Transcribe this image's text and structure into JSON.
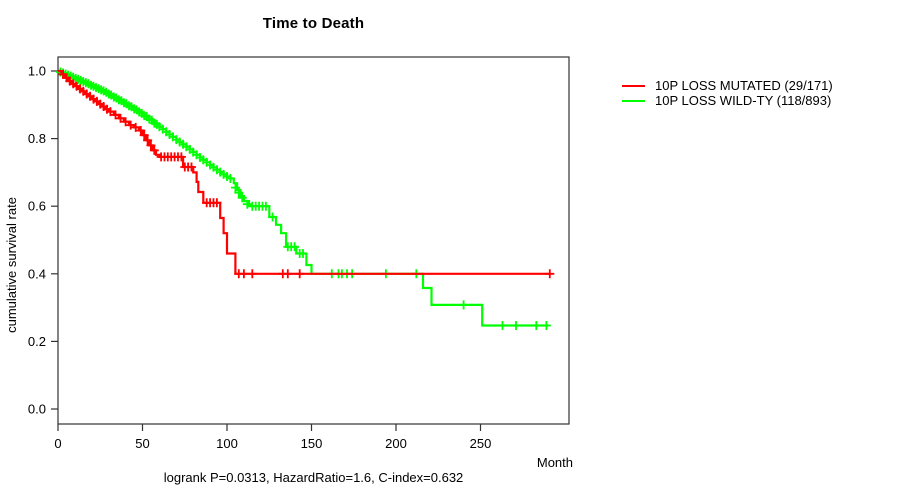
{
  "figure": {
    "title": "Time to Death",
    "x_axis_label": "Month",
    "y_axis_label": "cumulative survival rate",
    "caption": "logrank P=0.0313, HazardRatio=1.6, C-index=0.632"
  },
  "legend": {
    "items": [
      {
        "label": "10P LOSS MUTATED (29/171)",
        "color": "#ff0000"
      },
      {
        "label": "10P LOSS WILD-TY (118/893)",
        "color": "#00ff00"
      }
    ]
  },
  "colors": {
    "axis": "#333333",
    "text": "#000000",
    "background": "#ffffff",
    "mutated": "#ff0000",
    "wild_type": "#00ff00"
  },
  "chart_data": {
    "type": "line",
    "subtype": "kaplan-meier-step",
    "title": "Time to Death",
    "xlabel": "Month",
    "ylabel": "cumulative survival rate",
    "xlim": [
      0,
      300
    ],
    "ylim": [
      0.0,
      1.0
    ],
    "x_ticks": [
      0,
      50,
      100,
      150,
      200,
      250
    ],
    "y_ticks": [
      0.0,
      0.2,
      0.4,
      0.6,
      0.8,
      1.0
    ],
    "grid": false,
    "legend_position": "right-outside",
    "annotation": "logrank P=0.0313, HazardRatio=1.6, C-index=0.632",
    "series": [
      {
        "name": "10P LOSS MUTATED (29/171)",
        "color": "#ff0000",
        "steps": [
          [
            0,
            1.0
          ],
          [
            2,
            0.99
          ],
          [
            4,
            0.98
          ],
          [
            6,
            0.97
          ],
          [
            8,
            0.962
          ],
          [
            10,
            0.955
          ],
          [
            12,
            0.947
          ],
          [
            14,
            0.94
          ],
          [
            16,
            0.932
          ],
          [
            18,
            0.925
          ],
          [
            20,
            0.917
          ],
          [
            22,
            0.91
          ],
          [
            24,
            0.902
          ],
          [
            26,
            0.895
          ],
          [
            28,
            0.887
          ],
          [
            30,
            0.88
          ],
          [
            33,
            0.87
          ],
          [
            36,
            0.86
          ],
          [
            39,
            0.85
          ],
          [
            42,
            0.84
          ],
          [
            45,
            0.833
          ],
          [
            48,
            0.824
          ],
          [
            50,
            0.81
          ],
          [
            52,
            0.795
          ],
          [
            54,
            0.78
          ],
          [
            56,
            0.765
          ],
          [
            58,
            0.752
          ],
          [
            60,
            0.746
          ],
          [
            74,
            0.716
          ],
          [
            80,
            0.7
          ],
          [
            82,
            0.672
          ],
          [
            83,
            0.642
          ],
          [
            86,
            0.61
          ],
          [
            96,
            0.565
          ],
          [
            98,
            0.52
          ],
          [
            100,
            0.46
          ],
          [
            105,
            0.4
          ],
          [
            291,
            0.4
          ]
        ],
        "censors": [
          [
            3,
            0.99
          ],
          [
            5,
            0.98
          ],
          [
            7,
            0.97
          ],
          [
            9,
            0.962
          ],
          [
            11,
            0.955
          ],
          [
            13,
            0.947
          ],
          [
            15,
            0.94
          ],
          [
            17,
            0.932
          ],
          [
            19,
            0.925
          ],
          [
            21,
            0.917
          ],
          [
            23,
            0.91
          ],
          [
            25,
            0.902
          ],
          [
            27,
            0.895
          ],
          [
            29,
            0.887
          ],
          [
            31,
            0.88
          ],
          [
            34,
            0.87
          ],
          [
            37,
            0.86
          ],
          [
            40,
            0.85
          ],
          [
            43,
            0.84
          ],
          [
            46,
            0.833
          ],
          [
            49,
            0.824
          ],
          [
            51,
            0.81
          ],
          [
            53,
            0.795
          ],
          [
            55,
            0.78
          ],
          [
            57,
            0.765
          ],
          [
            61,
            0.746
          ],
          [
            63,
            0.746
          ],
          [
            65,
            0.746
          ],
          [
            67,
            0.746
          ],
          [
            69,
            0.746
          ],
          [
            71,
            0.746
          ],
          [
            73,
            0.746
          ],
          [
            75,
            0.716
          ],
          [
            77,
            0.716
          ],
          [
            79,
            0.716
          ],
          [
            88,
            0.61
          ],
          [
            90,
            0.61
          ],
          [
            92,
            0.61
          ],
          [
            94,
            0.61
          ],
          [
            107,
            0.4
          ],
          [
            110,
            0.4
          ],
          [
            115,
            0.4
          ],
          [
            133,
            0.4
          ],
          [
            136,
            0.4
          ],
          [
            143,
            0.4
          ],
          [
            291,
            0.4
          ]
        ]
      },
      {
        "name": "10P LOSS WILD-TY (118/893)",
        "color": "#00ff00",
        "steps": [
          [
            0,
            1.0
          ],
          [
            1,
            0.998
          ],
          [
            2,
            0.996
          ],
          [
            3,
            0.994
          ],
          [
            4,
            0.992
          ],
          [
            5,
            0.99
          ],
          [
            6,
            0.988
          ],
          [
            7,
            0.986
          ],
          [
            8,
            0.984
          ],
          [
            9,
            0.982
          ],
          [
            10,
            0.979
          ],
          [
            12,
            0.975
          ],
          [
            14,
            0.971
          ],
          [
            16,
            0.967
          ],
          [
            18,
            0.962
          ],
          [
            20,
            0.958
          ],
          [
            22,
            0.953
          ],
          [
            24,
            0.948
          ],
          [
            26,
            0.943
          ],
          [
            28,
            0.938
          ],
          [
            30,
            0.932
          ],
          [
            32,
            0.926
          ],
          [
            34,
            0.92
          ],
          [
            36,
            0.915
          ],
          [
            38,
            0.909
          ],
          [
            40,
            0.903
          ],
          [
            42,
            0.897
          ],
          [
            44,
            0.891
          ],
          [
            46,
            0.885
          ],
          [
            48,
            0.879
          ],
          [
            50,
            0.872
          ],
          [
            52,
            0.865
          ],
          [
            54,
            0.858
          ],
          [
            56,
            0.85
          ],
          [
            58,
            0.842
          ],
          [
            60,
            0.835
          ],
          [
            62,
            0.828
          ],
          [
            64,
            0.82
          ],
          [
            66,
            0.812
          ],
          [
            68,
            0.805
          ],
          [
            70,
            0.797
          ],
          [
            72,
            0.79
          ],
          [
            74,
            0.783
          ],
          [
            76,
            0.776
          ],
          [
            78,
            0.768
          ],
          [
            80,
            0.76
          ],
          [
            82,
            0.752
          ],
          [
            84,
            0.744
          ],
          [
            86,
            0.737
          ],
          [
            88,
            0.73
          ],
          [
            90,
            0.722
          ],
          [
            92,
            0.715
          ],
          [
            94,
            0.708
          ],
          [
            96,
            0.701
          ],
          [
            98,
            0.694
          ],
          [
            100,
            0.688
          ],
          [
            102,
            0.682
          ],
          [
            104,
            0.668
          ],
          [
            106,
            0.648
          ],
          [
            108,
            0.63
          ],
          [
            110,
            0.615
          ],
          [
            113,
            0.6
          ],
          [
            125,
            0.568
          ],
          [
            129,
            0.545
          ],
          [
            132,
            0.52
          ],
          [
            135,
            0.48
          ],
          [
            141,
            0.46
          ],
          [
            147,
            0.426
          ],
          [
            150,
            0.4
          ],
          [
            216,
            0.358
          ],
          [
            221,
            0.308
          ],
          [
            251,
            0.247
          ],
          [
            290,
            0.247
          ]
        ],
        "censors": [
          [
            1.5,
            0.997
          ],
          [
            3,
            0.994
          ],
          [
            4.5,
            0.991
          ],
          [
            6,
            0.988
          ],
          [
            7.5,
            0.985
          ],
          [
            9,
            0.982
          ],
          [
            10.5,
            0.978
          ],
          [
            12,
            0.975
          ],
          [
            13.5,
            0.972
          ],
          [
            15,
            0.969
          ],
          [
            16.5,
            0.965
          ],
          [
            18,
            0.962
          ],
          [
            19.5,
            0.958
          ],
          [
            21,
            0.955
          ],
          [
            22.5,
            0.951
          ],
          [
            24,
            0.948
          ],
          [
            25.5,
            0.944
          ],
          [
            27,
            0.941
          ],
          [
            28.5,
            0.937
          ],
          [
            30,
            0.932
          ],
          [
            31.5,
            0.929
          ],
          [
            33,
            0.923
          ],
          [
            34.5,
            0.92
          ],
          [
            36,
            0.915
          ],
          [
            37.5,
            0.912
          ],
          [
            39,
            0.906
          ],
          [
            40.5,
            0.903
          ],
          [
            42,
            0.897
          ],
          [
            43.5,
            0.894
          ],
          [
            45,
            0.888
          ],
          [
            46.5,
            0.885
          ],
          [
            48,
            0.879
          ],
          [
            49.5,
            0.875
          ],
          [
            51,
            0.868
          ],
          [
            52.5,
            0.865
          ],
          [
            54,
            0.858
          ],
          [
            55.5,
            0.854
          ],
          [
            57,
            0.846
          ],
          [
            58.5,
            0.842
          ],
          [
            60,
            0.835
          ],
          [
            62,
            0.828
          ],
          [
            64,
            0.82
          ],
          [
            66,
            0.812
          ],
          [
            68,
            0.805
          ],
          [
            70,
            0.797
          ],
          [
            72,
            0.79
          ],
          [
            74,
            0.783
          ],
          [
            76,
            0.776
          ],
          [
            78,
            0.768
          ],
          [
            80,
            0.76
          ],
          [
            82,
            0.752
          ],
          [
            84,
            0.744
          ],
          [
            86,
            0.737
          ],
          [
            88,
            0.73
          ],
          [
            90,
            0.722
          ],
          [
            92,
            0.715
          ],
          [
            94,
            0.708
          ],
          [
            96,
            0.701
          ],
          [
            98,
            0.694
          ],
          [
            100,
            0.688
          ],
          [
            102,
            0.682
          ],
          [
            105,
            0.655
          ],
          [
            107,
            0.64
          ],
          [
            109,
            0.625
          ],
          [
            112,
            0.606
          ],
          [
            115,
            0.6
          ],
          [
            117,
            0.6
          ],
          [
            119,
            0.6
          ],
          [
            121,
            0.6
          ],
          [
            123,
            0.6
          ],
          [
            127,
            0.568
          ],
          [
            136,
            0.48
          ],
          [
            138,
            0.48
          ],
          [
            140,
            0.48
          ],
          [
            143,
            0.46
          ],
          [
            145,
            0.46
          ],
          [
            162,
            0.4
          ],
          [
            166,
            0.4
          ],
          [
            168,
            0.4
          ],
          [
            171,
            0.4
          ],
          [
            174,
            0.4
          ],
          [
            194,
            0.4
          ],
          [
            212,
            0.4
          ],
          [
            240,
            0.308
          ],
          [
            263,
            0.247
          ],
          [
            271,
            0.247
          ],
          [
            283,
            0.247
          ],
          [
            289,
            0.247
          ]
        ]
      }
    ]
  }
}
